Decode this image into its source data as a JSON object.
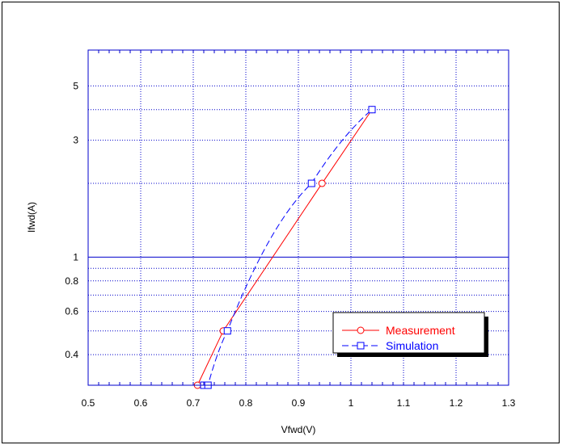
{
  "chart_data": {
    "type": "line",
    "xlabel": "Vfwd(V)",
    "ylabel": "Ifwd(A)",
    "x_scale": "linear",
    "y_scale": "log",
    "xlim": [
      0.5,
      1.3
    ],
    "ylim": [
      0.3,
      7
    ],
    "x_ticks": [
      0.5,
      0.6,
      0.7,
      0.8,
      0.9,
      1.0,
      1.1,
      1.2,
      1.3
    ],
    "x_tick_labels": [
      "0.5",
      "0.6",
      "0.7",
      "0.8",
      "0.9",
      "1",
      "1.1",
      "1.2",
      "1.3"
    ],
    "y_ticks": [
      0.4,
      0.6,
      0.8,
      1,
      3,
      5
    ],
    "y_tick_labels": [
      "0.4",
      "0.6",
      "0.8",
      "1",
      "3",
      "5"
    ],
    "grid": true,
    "legend_position": "bottom-right",
    "series": [
      {
        "name": "Measurement",
        "color": "#ff0000",
        "line_style": "solid",
        "marker": "circle",
        "x": [
          0.708,
          0.757,
          0.945,
          1.04
        ],
        "y": [
          0.3,
          0.5,
          2.0,
          4.0
        ]
      },
      {
        "name": "Simulation",
        "color": "#0000ff",
        "line_style": "dashed",
        "marker": "square",
        "x": [
          0.72,
          0.728,
          0.765,
          0.925,
          1.04
        ],
        "y": [
          0.3,
          0.3,
          0.5,
          2.0,
          4.0
        ]
      }
    ]
  }
}
